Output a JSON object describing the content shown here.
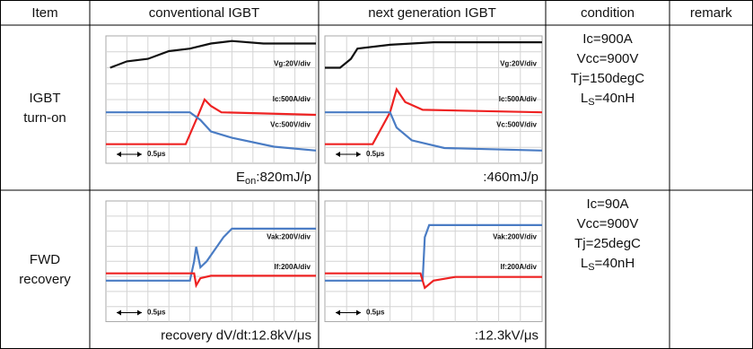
{
  "table": {
    "header": [
      "Item",
      "conventional IGBT",
      "next generation IGBT",
      "condition",
      "remark"
    ],
    "rows": [
      {
        "item": [
          "IGBT",
          "turn-on"
        ],
        "plots": [
          {
            "labels": [
              "Vg:20V/div",
              "Ic:500A/div",
              "Vc:500V/div"
            ],
            "time_scale": "0.5μs",
            "caption": {
              "main": "E",
              "sub": "on",
              "rest": ":820mJ/p"
            }
          },
          {
            "labels": [
              "Vg:20V/div",
              "Ic:500A/div",
              "Vc:500V/div"
            ],
            "time_scale": "0.5μs",
            "caption": {
              "main": ":460mJ/p"
            }
          }
        ],
        "condition": [
          {
            "main": "Ic=900A"
          },
          {
            "main": "Vcc=900V"
          },
          {
            "main": "Tj=150degC"
          },
          {
            "main": "L",
            "sub": "S",
            "rest": "=40nH"
          }
        ]
      },
      {
        "item": [
          "FWD",
          "recovery"
        ],
        "plots": [
          {
            "labels": [
              "Vak:200V/div",
              "If:200A/div"
            ],
            "time_scale": "0.5μs",
            "caption": {
              "main": "recovery dV/dt:12.8kV/μs"
            }
          },
          {
            "labels": [
              "Vak:200V/div",
              "If:200A/div"
            ],
            "time_scale": "0.5μs",
            "caption": {
              "main": ":12.3kV/μs"
            }
          }
        ],
        "condition": [
          {
            "main": "Ic=90A"
          },
          {
            "main": "Vcc=900V"
          },
          {
            "main": "Tj=25degC"
          },
          {
            "main": "L",
            "sub": "S",
            "rest": "=40nH"
          }
        ]
      }
    ]
  }
}
